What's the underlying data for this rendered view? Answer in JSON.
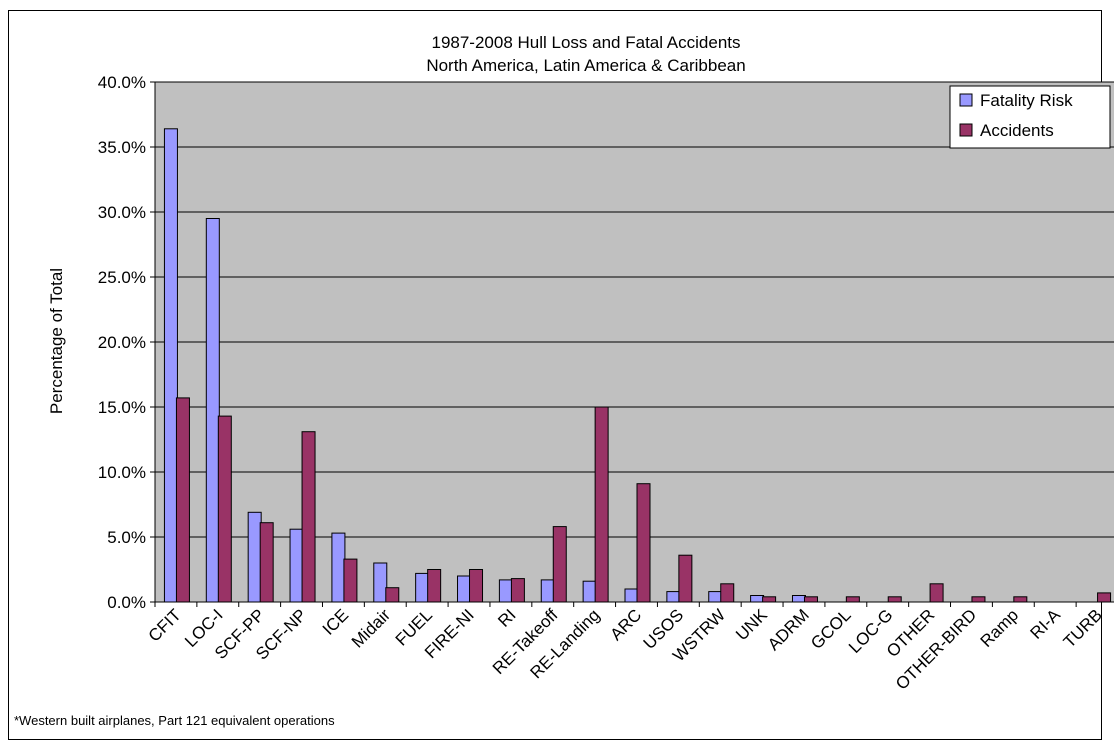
{
  "chart_data": {
    "type": "bar",
    "title": "1987-2008 Hull Loss and Fatal Accidents",
    "subtitle": "North America,  Latin America & Caribbean",
    "ylabel": "Percentage of Total",
    "xlabel": "",
    "footnote": "*Western built airplanes, Part 121 equivalent operations",
    "ylim": [
      0,
      40
    ],
    "yticks": [
      "0.0%",
      "5.0%",
      "10.0%",
      "15.0%",
      "20.0%",
      "25.0%",
      "30.0%",
      "35.0%",
      "40.0%"
    ],
    "grid": true,
    "legend_position": "top-right",
    "categories": [
      "CFIT",
      "LOC-I",
      "SCF-PP",
      "SCF-NP",
      "ICE",
      "Midair",
      "FUEL",
      "FIRE-NI",
      "RI",
      "RE-Takeoff",
      "RE-Landing",
      "ARC",
      "USOS",
      "WSTRW",
      "UNK",
      "ADRM",
      "GCOL",
      "LOC-G",
      "OTHER",
      "OTHER-BIRD",
      "Ramp",
      "RI-A",
      "TURB"
    ],
    "series": [
      {
        "name": "Fatality Risk",
        "color": "#9999ff",
        "values": [
          36.4,
          29.5,
          6.9,
          5.6,
          5.3,
          3.0,
          2.2,
          2.0,
          1.7,
          1.7,
          1.6,
          1.0,
          0.8,
          0.8,
          0.5,
          0.5,
          0.0,
          0.0,
          0.0,
          0.0,
          0.0,
          0.0,
          0.0
        ]
      },
      {
        "name": "Accidents",
        "color": "#993366",
        "values": [
          15.7,
          14.3,
          6.1,
          13.1,
          3.3,
          1.1,
          2.5,
          2.5,
          1.8,
          5.8,
          15.0,
          9.1,
          3.6,
          1.4,
          0.4,
          0.4,
          0.4,
          0.4,
          1.4,
          0.4,
          0.4,
          0.0,
          0.7
        ]
      }
    ],
    "plot_background": "#c0c0c0"
  }
}
